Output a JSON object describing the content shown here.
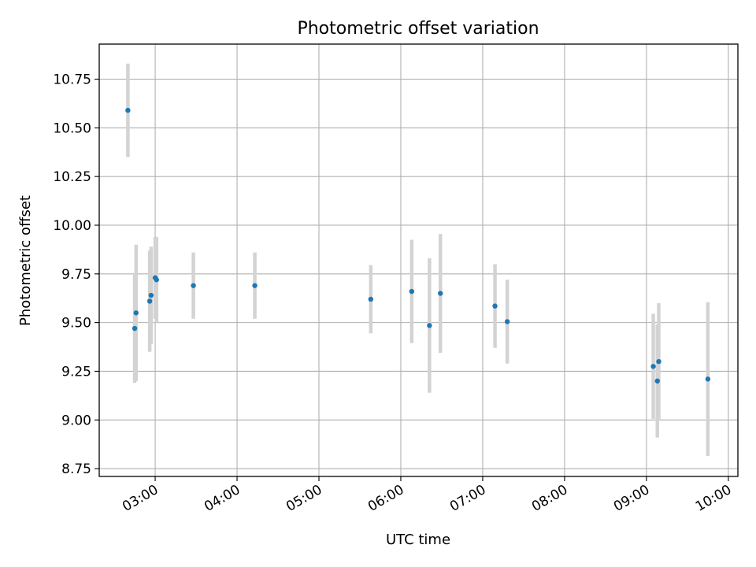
{
  "chart_data": {
    "type": "scatter",
    "title": "Photometric offset variation",
    "xlabel": "UTC time",
    "ylabel": "Photometric offset",
    "xlim": [
      "02:19",
      "10:07"
    ],
    "ylim": [
      8.71,
      10.93
    ],
    "grid": true,
    "x_ticks": [
      "03:00",
      "04:00",
      "05:00",
      "06:00",
      "07:00",
      "08:00",
      "09:00",
      "10:00"
    ],
    "y_ticks": [
      "8.75",
      "9.00",
      "9.25",
      "9.50",
      "9.75",
      "10.00",
      "10.25",
      "10.50",
      "10.75"
    ],
    "series": [
      {
        "marker_color": "#1f77b4",
        "errorbar_color": "#d3d3d3",
        "points": [
          {
            "x": "02:40",
            "y": 10.59,
            "err": 0.24
          },
          {
            "x": "02:45",
            "y": 9.47,
            "err": 0.28
          },
          {
            "x": "02:46",
            "y": 9.55,
            "err": 0.35
          },
          {
            "x": "02:56",
            "y": 9.61,
            "err": 0.26
          },
          {
            "x": "02:57",
            "y": 9.64,
            "err": 0.25
          },
          {
            "x": "03:00",
            "y": 9.73,
            "err": 0.21
          },
          {
            "x": "03:01",
            "y": 9.72,
            "err": 0.22
          },
          {
            "x": "03:28",
            "y": 9.69,
            "err": 0.17
          },
          {
            "x": "04:13",
            "y": 9.69,
            "err": 0.17
          },
          {
            "x": "05:38",
            "y": 9.62,
            "err": 0.175
          },
          {
            "x": "06:08",
            "y": 9.66,
            "err": 0.265
          },
          {
            "x": "06:21",
            "y": 9.485,
            "err": 0.345
          },
          {
            "x": "06:29",
            "y": 9.65,
            "err": 0.305
          },
          {
            "x": "07:09",
            "y": 9.585,
            "err": 0.215
          },
          {
            "x": "07:18",
            "y": 9.505,
            "err": 0.215
          },
          {
            "x": "09:05",
            "y": 9.275,
            "err": 0.27
          },
          {
            "x": "09:08",
            "y": 9.2,
            "err": 0.29
          },
          {
            "x": "09:09",
            "y": 9.3,
            "err": 0.3
          },
          {
            "x": "09:45",
            "y": 9.21,
            "err": 0.395
          }
        ]
      }
    ]
  }
}
